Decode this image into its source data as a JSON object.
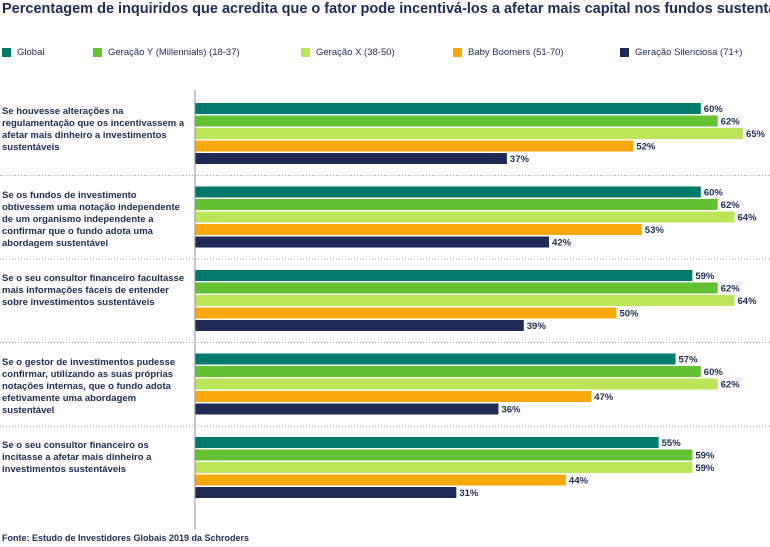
{
  "chart_data": {
    "type": "bar",
    "orientation": "horizontal",
    "title": "Percentagem de inquiridos que acredita que o fator pode incentivá-los a afetar mais capital nos fundos sustentáveis",
    "categories": [
      "Se houvesse alterações na regulamentação que os incentivassem a afetar mais dinheiro a investimentos sustentáveis",
      "Se os fundos de investimento obtivessem uma notação independente de um organismo independente a confirmar que o fundo adota uma abordagem sustentável",
      "Se o seu consultor financeiro facultasse mais informações fáceis de entender sobre investimentos sustentáveis",
      "Se o gestor de investimentos pudesse confirmar, utilizando as suas próprias notações internas, que o fundo adota efetivamente uma abordagem sustentável",
      "Se o seu consultor financeiro os incitasse a afetar mais dinheiro a investimentos sustentáveis"
    ],
    "series": [
      {
        "name": "Global",
        "color": "#007a6c",
        "values": [
          60,
          60,
          59,
          57,
          55
        ]
      },
      {
        "name": "Geração Y (Millennials) (18-37)",
        "color": "#62c232",
        "values": [
          62,
          62,
          62,
          60,
          59
        ]
      },
      {
        "name": "Geração X (38-50)",
        "color": "#bde55a",
        "values": [
          65,
          64,
          64,
          62,
          59
        ]
      },
      {
        "name": "Baby Boomers (51-70)",
        "color": "#f8a80a",
        "values": [
          52,
          53,
          50,
          47,
          44
        ]
      },
      {
        "name": "Geração Silenciosa (71+)",
        "color": "#1f2a56",
        "values": [
          37,
          42,
          39,
          36,
          31
        ]
      }
    ],
    "value_suffix": "%",
    "legend_position": "top",
    "grid": false
  },
  "source": "Fonte: Estudo de Investidores Globais 2019 da Schroders"
}
